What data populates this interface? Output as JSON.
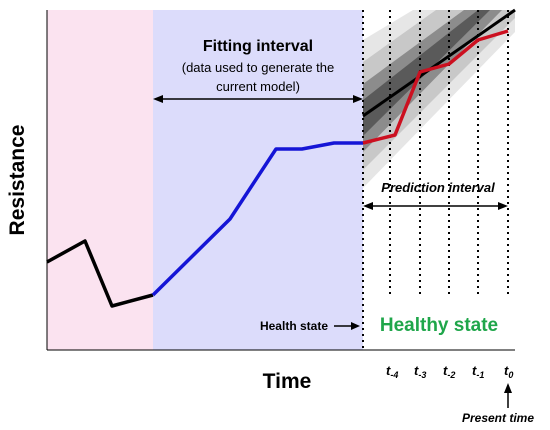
{
  "axes": {
    "ylabel": "Resistance",
    "xlabel": "Time"
  },
  "fitting": {
    "title": "Fitting interval",
    "line1": "(data used to generate the",
    "line2": "current model)"
  },
  "prediction": {
    "label": "Prediction interval"
  },
  "health": {
    "label": "Health state",
    "state": "Healthy state"
  },
  "ticks": [
    {
      "base": "t",
      "sub": "-4"
    },
    {
      "base": "t",
      "sub": "-3"
    },
    {
      "base": "t",
      "sub": "-2"
    },
    {
      "base": "t",
      "sub": "-1"
    },
    {
      "base": "t",
      "sub": "0"
    }
  ],
  "present": {
    "label": "Present time"
  },
  "colors": {
    "past_region": "#fbe3f0",
    "fitting_region": "#dcdcfb",
    "past_line": "#000000",
    "fitting_line": "#1515d6",
    "prediction_line": "#cc1020",
    "trend_line": "#000000",
    "health_text": "#1fa64a"
  }
}
